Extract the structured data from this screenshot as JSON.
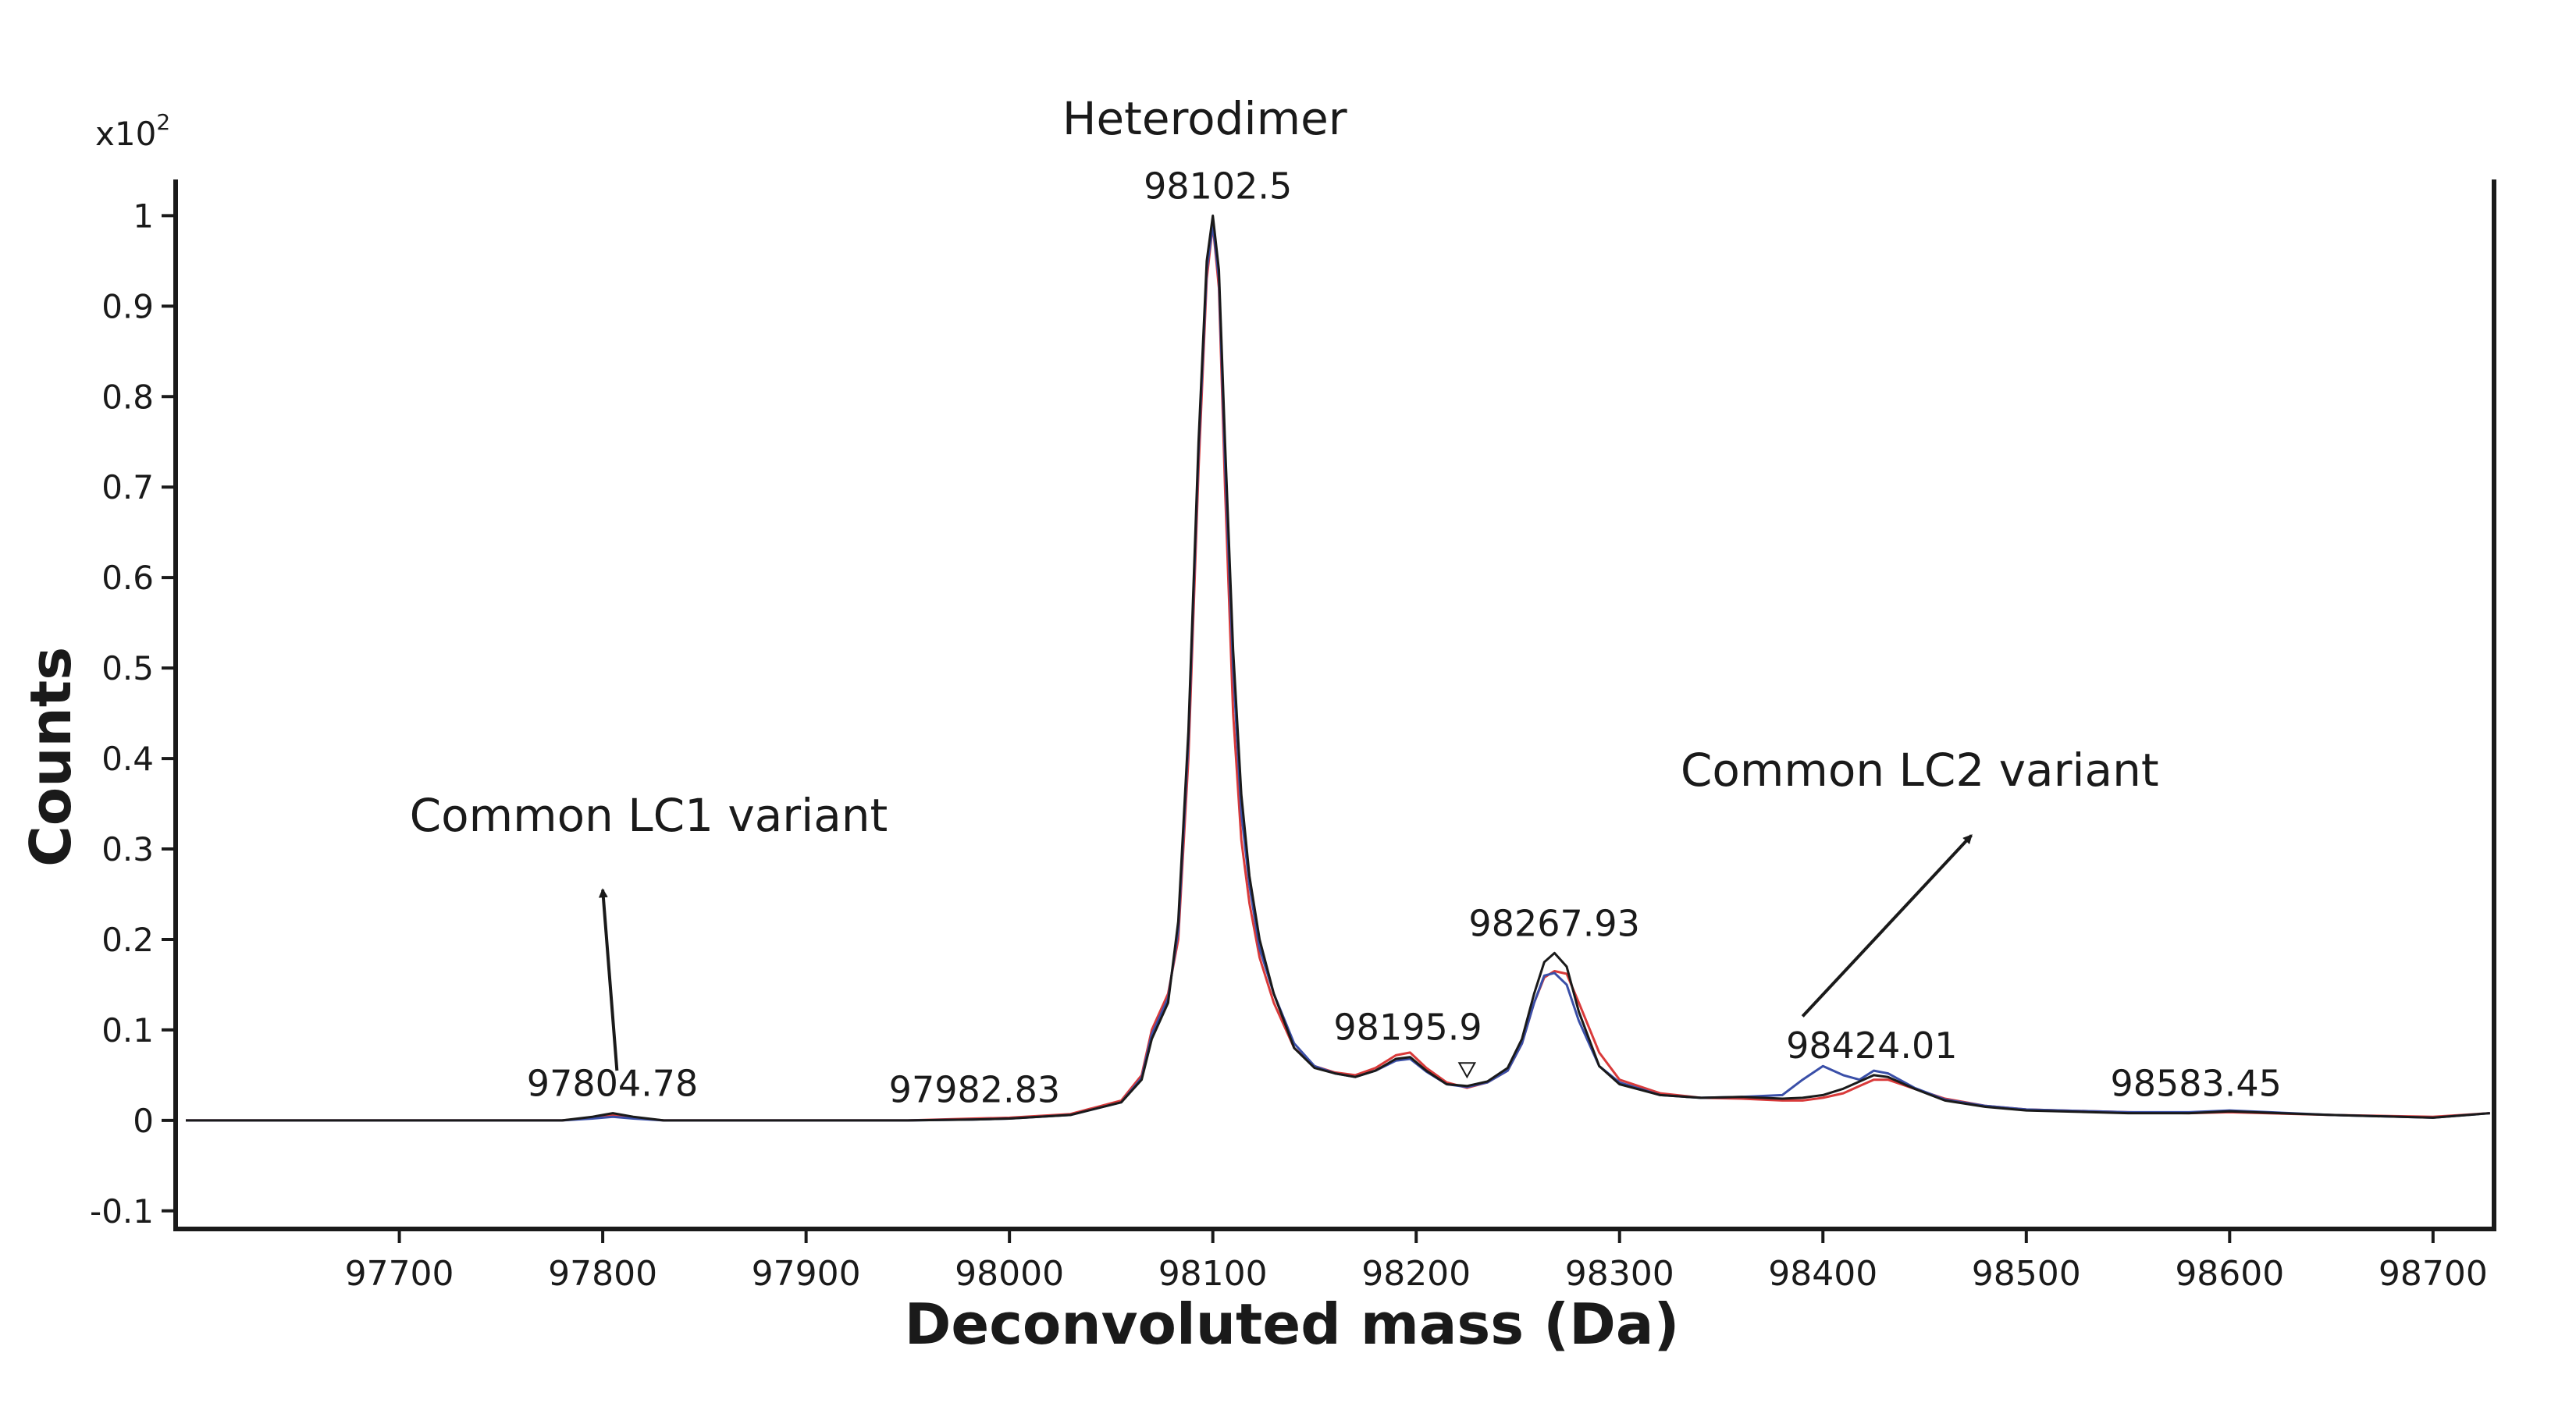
{
  "chart_data": {
    "type": "line",
    "title": "",
    "xlabel": "Deconvoluted mass (Da)",
    "ylabel": "Counts",
    "y_scale_label": "x10",
    "y_scale_exponent": "2",
    "xlim": [
      97590,
      98730
    ],
    "ylim": [
      -0.12,
      1.04
    ],
    "x_ticks": [
      97700,
      97800,
      97900,
      98000,
      98100,
      98200,
      98300,
      98400,
      98500,
      98600,
      98700
    ],
    "y_ticks": [
      -0.1,
      0,
      0.1,
      0.2,
      0.3,
      0.4,
      0.5,
      0.6,
      0.7,
      0.8,
      0.9,
      1
    ],
    "x_tick_labels": [
      "97700",
      "97800",
      "97900",
      "98000",
      "98100",
      "98200",
      "98300",
      "98400",
      "98500",
      "98600",
      "98700"
    ],
    "y_tick_labels": [
      "-0.1",
      "0",
      "0.1",
      "0.2",
      "0.3",
      "0.4",
      "0.5",
      "0.6",
      "0.7",
      "0.8",
      "0.9",
      "1"
    ],
    "grid": false,
    "legend": "none",
    "series": [
      {
        "color": "#1a1a1a",
        "x": [
          97595,
          97780,
          97795,
          97805,
          97815,
          97830,
          97950,
          97982,
          98000,
          98030,
          98055,
          98065,
          98070,
          98078,
          98083,
          98088,
          98093,
          98097,
          98100,
          98103,
          98106,
          98110,
          98114,
          98118,
          98123,
          98130,
          98140,
          98150,
          98160,
          98170,
          98180,
          98190,
          98197,
          98205,
          98215,
          98225,
          98235,
          98245,
          98252,
          98258,
          98263,
          98268,
          98274,
          98280,
          98290,
          98300,
          98320,
          98340,
          98360,
          98380,
          98390,
          98400,
          98410,
          98418,
          98425,
          98432,
          98445,
          98460,
          98480,
          98500,
          98550,
          98580,
          98600,
          98650,
          98700,
          98728
        ],
        "y": [
          0,
          0,
          0.004,
          0.008,
          0.004,
          0,
          0,
          0.001,
          0.002,
          0.006,
          0.02,
          0.045,
          0.09,
          0.13,
          0.22,
          0.43,
          0.75,
          0.95,
          1.0,
          0.94,
          0.75,
          0.52,
          0.36,
          0.27,
          0.2,
          0.14,
          0.08,
          0.058,
          0.052,
          0.048,
          0.055,
          0.068,
          0.07,
          0.055,
          0.04,
          0.038,
          0.043,
          0.058,
          0.09,
          0.14,
          0.175,
          0.185,
          0.17,
          0.12,
          0.06,
          0.04,
          0.028,
          0.025,
          0.026,
          0.024,
          0.025,
          0.028,
          0.035,
          0.043,
          0.05,
          0.048,
          0.035,
          0.022,
          0.015,
          0.011,
          0.008,
          0.008,
          0.01,
          0.006,
          0.003,
          0.008
        ]
      },
      {
        "color": "#d93a3a",
        "x": [
          97595,
          97780,
          97795,
          97805,
          97815,
          97830,
          97950,
          97982,
          98000,
          98030,
          98055,
          98065,
          98070,
          98078,
          98083,
          98088,
          98093,
          98097,
          98100,
          98103,
          98106,
          98110,
          98114,
          98118,
          98123,
          98130,
          98140,
          98150,
          98160,
          98170,
          98180,
          98190,
          98197,
          98205,
          98215,
          98225,
          98235,
          98245,
          98252,
          98258,
          98263,
          98268,
          98274,
          98280,
          98290,
          98300,
          98320,
          98340,
          98360,
          98380,
          98390,
          98400,
          98410,
          98418,
          98425,
          98432,
          98445,
          98460,
          98480,
          98500,
          98550,
          98580,
          98600,
          98650,
          98700,
          98728
        ],
        "y": [
          0,
          0,
          0.003,
          0.006,
          0.003,
          0,
          0,
          0.002,
          0.003,
          0.007,
          0.022,
          0.05,
          0.1,
          0.14,
          0.2,
          0.4,
          0.72,
          0.93,
          0.99,
          0.92,
          0.7,
          0.45,
          0.31,
          0.24,
          0.18,
          0.13,
          0.08,
          0.06,
          0.053,
          0.05,
          0.058,
          0.072,
          0.075,
          0.058,
          0.042,
          0.036,
          0.042,
          0.055,
          0.085,
          0.13,
          0.158,
          0.165,
          0.162,
          0.13,
          0.075,
          0.045,
          0.03,
          0.025,
          0.024,
          0.022,
          0.022,
          0.025,
          0.03,
          0.038,
          0.045,
          0.045,
          0.035,
          0.024,
          0.016,
          0.012,
          0.009,
          0.008,
          0.009,
          0.006,
          0.004,
          0.008
        ]
      },
      {
        "color": "#3a4fa8",
        "x": [
          97595,
          97780,
          97795,
          97805,
          97815,
          97830,
          97950,
          97982,
          98000,
          98030,
          98055,
          98065,
          98070,
          98078,
          98083,
          98088,
          98093,
          98097,
          98100,
          98103,
          98106,
          98110,
          98114,
          98118,
          98123,
          98130,
          98140,
          98150,
          98160,
          98170,
          98180,
          98190,
          98197,
          98205,
          98215,
          98225,
          98235,
          98245,
          98252,
          98258,
          98263,
          98268,
          98274,
          98280,
          98290,
          98300,
          98320,
          98340,
          98360,
          98380,
          98390,
          98400,
          98410,
          98418,
          98425,
          98432,
          98445,
          98460,
          98480,
          98500,
          98550,
          98580,
          98600,
          98650,
          98700,
          98728
        ],
        "y": [
          0,
          0,
          0.002,
          0.004,
          0.002,
          0,
          0,
          0.001,
          0.002,
          0.006,
          0.02,
          0.047,
          0.095,
          0.135,
          0.21,
          0.42,
          0.74,
          0.94,
          0.99,
          0.93,
          0.73,
          0.5,
          0.34,
          0.26,
          0.19,
          0.14,
          0.085,
          0.06,
          0.052,
          0.048,
          0.055,
          0.066,
          0.068,
          0.054,
          0.04,
          0.037,
          0.042,
          0.055,
          0.085,
          0.13,
          0.16,
          0.163,
          0.15,
          0.11,
          0.06,
          0.042,
          0.028,
          0.025,
          0.026,
          0.028,
          0.045,
          0.06,
          0.05,
          0.045,
          0.055,
          0.052,
          0.036,
          0.023,
          0.016,
          0.012,
          0.009,
          0.009,
          0.011,
          0.006,
          0.003,
          0.008
        ]
      }
    ],
    "peak_labels": [
      {
        "text": "97804.78",
        "x": 97804.78,
        "y": 0.008
      },
      {
        "text": "97982.83",
        "x": 97982.83,
        "y": 0.001
      },
      {
        "text": "98102.5",
        "x": 98102.5,
        "y": 1.0
      },
      {
        "text": "98195.9",
        "x": 98195.9,
        "y": 0.07
      },
      {
        "text": "98267.93",
        "x": 98267.93,
        "y": 0.185
      },
      {
        "text": "98424.01",
        "x": 98424.01,
        "y": 0.05
      },
      {
        "text": "98583.45",
        "x": 98583.45,
        "y": 0.008
      }
    ],
    "marker": {
      "shape": "triangle-down",
      "x": 98225,
      "y": 0.048
    },
    "annotations": [
      {
        "text": "Heterodimer",
        "x": 98096,
        "y": 1.09
      },
      {
        "text": "Common LC1 variant",
        "x": 97705,
        "y": 0.32
      },
      {
        "text": "Common LC2 variant",
        "x": 98330,
        "y": 0.37
      }
    ],
    "arrows": [
      {
        "from": [
          97807,
          0.055
        ],
        "to": [
          97800,
          0.255
        ]
      },
      {
        "from": [
          98390,
          0.115
        ],
        "to": [
          98473,
          0.315
        ]
      }
    ]
  }
}
